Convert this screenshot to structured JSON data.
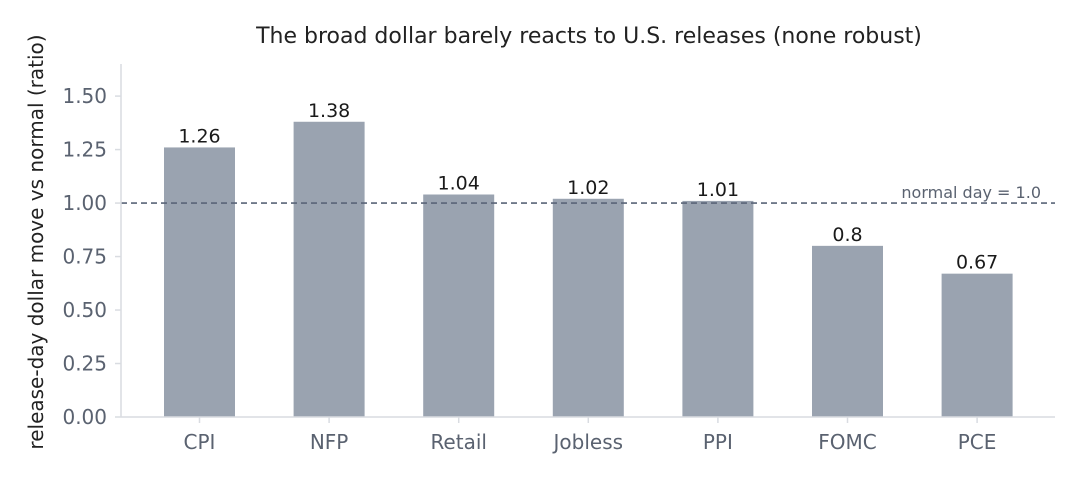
{
  "chart_data": {
    "type": "bar",
    "title": "The broad dollar barely reacts to U.S. releases (none robust)",
    "xlabel": "",
    "ylabel": "release-day dollar move vs normal (ratio)",
    "categories": [
      "CPI",
      "NFP",
      "Retail",
      "Jobless",
      "PPI",
      "FOMC",
      "PCE"
    ],
    "values": [
      1.26,
      1.38,
      1.04,
      1.02,
      1.01,
      0.8,
      0.67
    ],
    "data_labels": [
      "1.26",
      "1.38",
      "1.04",
      "1.02",
      "1.01",
      "0.8",
      "0.67"
    ],
    "ylim": [
      0,
      1.65
    ],
    "yticks": [
      0,
      0.25,
      0.5,
      0.75,
      1.0,
      1.25,
      1.5
    ],
    "ytick_labels": [
      "0.00",
      "0.25",
      "0.50",
      "0.75",
      "1.00",
      "1.25",
      "1.50"
    ],
    "reference_line": {
      "value": 1.0,
      "label": "normal day = 1.0",
      "style": "dashed"
    },
    "grid": false,
    "legend": "none",
    "colors": {
      "bar": "#9aa3b0",
      "axis": "#d9dce1",
      "reference": "#5a6578",
      "text": "#5a6270"
    }
  }
}
